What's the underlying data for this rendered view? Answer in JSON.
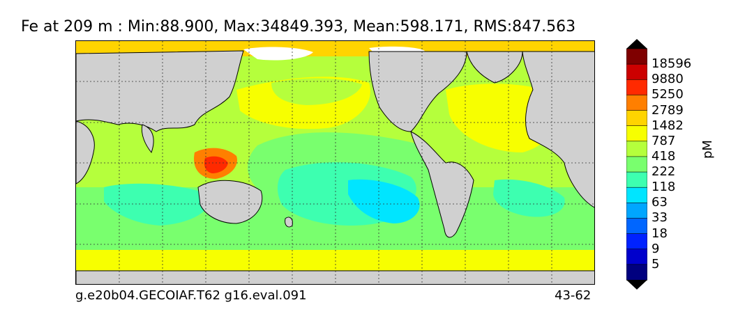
{
  "title": "Fe at 209 m : Min:88.900, Max:34849.393, Mean:598.171, RMS:847.563",
  "footer": {
    "left": "g.e20b04.GECOIAF.T62 g16.eval.091",
    "right": "43-62"
  },
  "colorbar": {
    "unit": "pM",
    "ticks": [
      "18596",
      "9880",
      "5250",
      "2789",
      "1482",
      "787",
      "418",
      "222",
      "118",
      "63",
      "33",
      "18",
      "9",
      "5"
    ],
    "colors": [
      "#7f0000",
      "#cc0000",
      "#ff2a00",
      "#ff7f00",
      "#ffd400",
      "#f7ff00",
      "#b5ff3c",
      "#79ff6e",
      "#3dffb0",
      "#00e5ff",
      "#00a6ff",
      "#0066ff",
      "#0022ff",
      "#0000cc",
      "#00007f"
    ],
    "over_color": "#000000",
    "under_color": "#000000"
  },
  "map_colors": {
    "land": "#d0d0d0",
    "ice": "#ffffff",
    "coast": "#000000",
    "grid": "#333333"
  }
}
